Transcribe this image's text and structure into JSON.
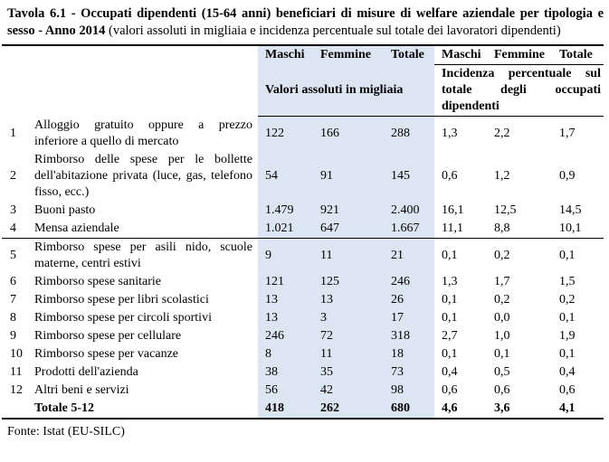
{
  "title": {
    "bold": "Tavola 6.1 - Occupati dipendenti (15-64 anni) beneficiari di misure di welfare aziendale per tipologia e sesso - Anno 2014",
    "normal": " (valori assoluti in migliaia e incidenza percentuale sul totale dei lavoratori dipendenti)"
  },
  "table": {
    "group_headers": {
      "left_cols": [
        "Maschi",
        "Femmine",
        "Totale"
      ],
      "right_cols": [
        "Maschi",
        "Femmine",
        "Totale"
      ],
      "left_label": "Valori assoluti in migliaia",
      "right_label": "Incidenza percentuale sul totale degli occupati dipendenti"
    },
    "rows": [
      {
        "num": "1",
        "label": "Alloggio gratuito oppure a prezzo inferiore a quello di mercato",
        "values": [
          "122",
          "166",
          "288",
          "1,3",
          "2,2",
          "1,7"
        ]
      },
      {
        "num": "2",
        "label": "Rimborso delle spese per le bollette dell'abitazione privata (luce, gas, telefono fisso, ecc.)",
        "values": [
          "54",
          "91",
          "145",
          "0,6",
          "1,2",
          "0,9"
        ]
      },
      {
        "num": "3",
        "label": "Buoni pasto",
        "values": [
          "1.479",
          "921",
          "2.400",
          "16,1",
          "12,5",
          "14,5"
        ]
      },
      {
        "num": "4",
        "label": "Mensa aziendale",
        "values": [
          "1.021",
          "647",
          "1.667",
          "11,1",
          "8,8",
          "10,1"
        ]
      },
      {
        "num": "5",
        "label": "Rimborso spese per asili nido, scuole materne, centri estivi",
        "values": [
          "9",
          "11",
          "21",
          "0,1",
          "0,2",
          "0,1"
        ]
      },
      {
        "num": "6",
        "label": "Rimborso spese sanitarie",
        "values": [
          "121",
          "125",
          "246",
          "1,3",
          "1,7",
          "1,5"
        ]
      },
      {
        "num": "7",
        "label": "Rimborso spese per libri scolastici",
        "values": [
          "13",
          "13",
          "26",
          "0,1",
          "0,2",
          "0,2"
        ]
      },
      {
        "num": "8",
        "label": "Rimborso spese per circoli sportivi",
        "values": [
          "13",
          "3",
          "17",
          "0,1",
          "0,0",
          "0,1"
        ]
      },
      {
        "num": "9",
        "label": "Rimborso spese per cellulare",
        "values": [
          "246",
          "72",
          "318",
          "2,7",
          "1,0",
          "1,9"
        ]
      },
      {
        "num": "10",
        "label": "Rimborso spese per vacanze",
        "values": [
          "8",
          "11",
          "18",
          "0,1",
          "0,1",
          "0,1"
        ]
      },
      {
        "num": "11",
        "label": "Prodotti dell'azienda",
        "values": [
          "38",
          "35",
          "73",
          "0,4",
          "0,5",
          "0,4"
        ]
      },
      {
        "num": "12",
        "label": "Altri beni e servizi",
        "values": [
          "56",
          "42",
          "98",
          "0,6",
          "0,6",
          "0,6"
        ]
      }
    ],
    "total_row": {
      "num": "",
      "label": "Totale 5-12",
      "values": [
        "418",
        "262",
        "680",
        "4,6",
        "3,6",
        "4,1"
      ]
    }
  },
  "footer": {
    "source": "Fonte: Istat (EU-SILC)"
  },
  "colors": {
    "highlight": "#dbe6f2",
    "text": "#000000",
    "rule": "#000000"
  }
}
